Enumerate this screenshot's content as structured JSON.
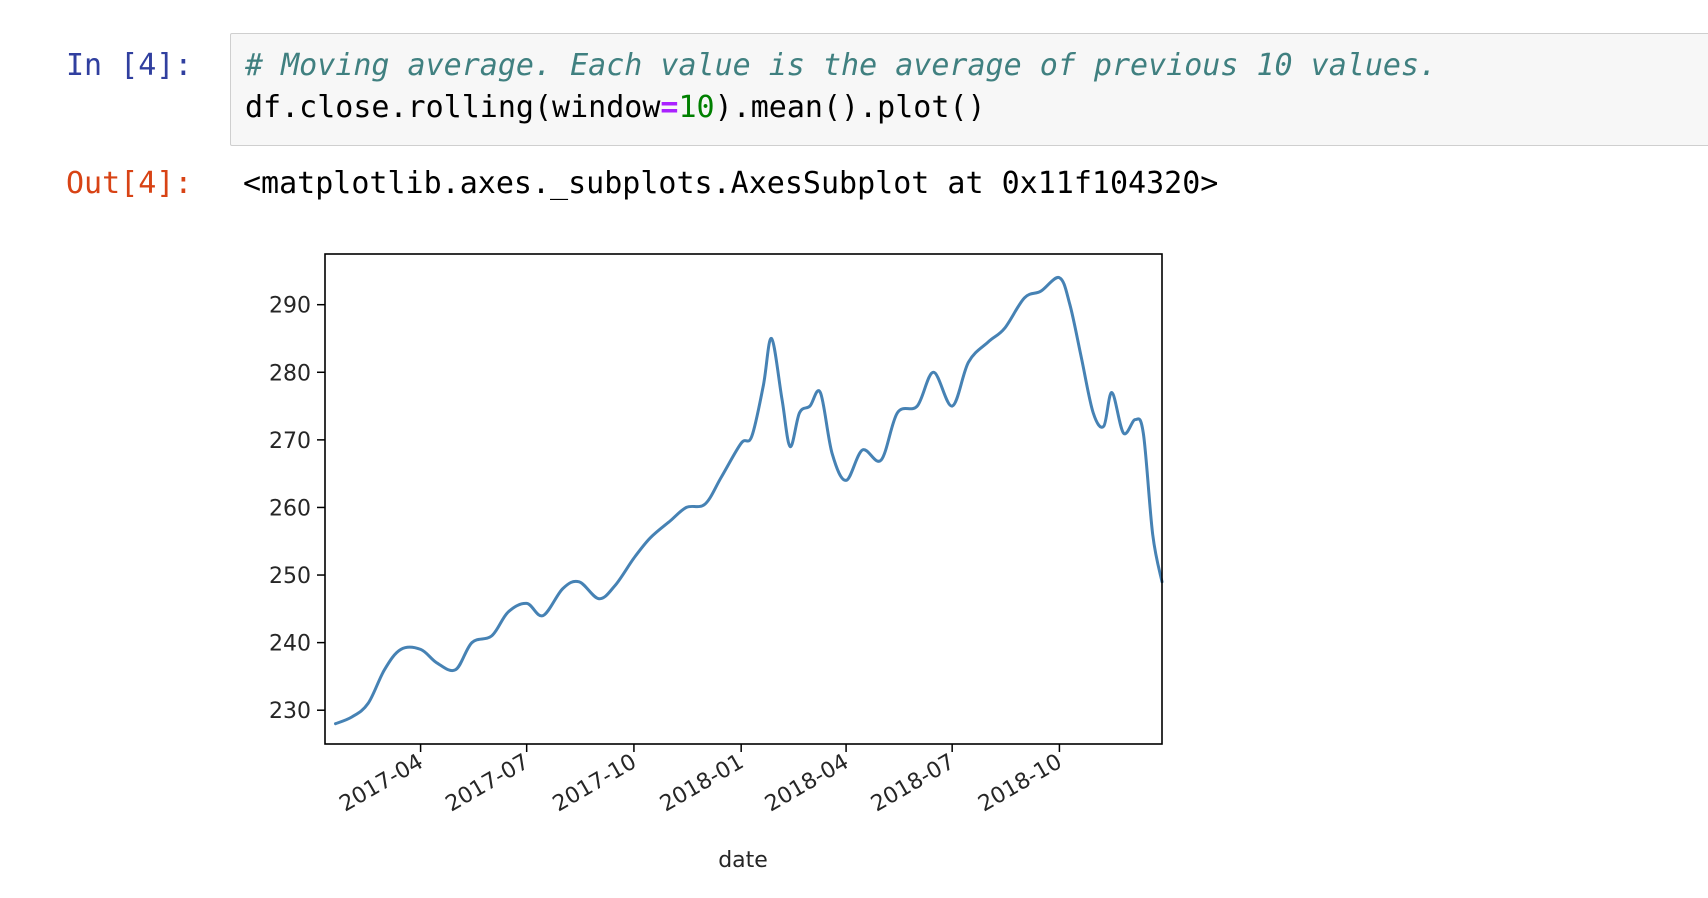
{
  "cell": {
    "in_prompt": "In [4]:",
    "out_prompt": "Out[4]:",
    "code_comment": "# Moving average. Each value is the average of previous 10 values.",
    "code_part1": "df.close.rolling(window",
    "code_op": "=",
    "code_num": "10",
    "code_part2": ").mean().plot()",
    "output_repr": "<matplotlib.axes._subplots.AxesSubplot at 0x11f104320>"
  },
  "chart_data": {
    "type": "line",
    "xlabel": "date",
    "ylabel": "",
    "title": "",
    "line_color": "#4682b4",
    "ylim": [
      225,
      297.5
    ],
    "xlim": [
      "2017-01-09",
      "2018-12-28"
    ],
    "yticks": [
      230,
      240,
      250,
      260,
      270,
      280,
      290
    ],
    "xticks": [
      "2017-04",
      "2017-07",
      "2017-10",
      "2018-01",
      "2018-04",
      "2018-07",
      "2018-10"
    ],
    "x": [
      "2017-01-18",
      "2017-02-01",
      "2017-02-15",
      "2017-03-01",
      "2017-03-15",
      "2017-04-01",
      "2017-04-15",
      "2017-05-01",
      "2017-05-15",
      "2017-06-01",
      "2017-06-15",
      "2017-07-01",
      "2017-07-15",
      "2017-08-01",
      "2017-08-15",
      "2017-09-01",
      "2017-09-15",
      "2017-10-01",
      "2017-10-15",
      "2017-11-01",
      "2017-11-15",
      "2017-12-01",
      "2017-12-15",
      "2018-01-01",
      "2018-01-10",
      "2018-01-20",
      "2018-01-27",
      "2018-02-05",
      "2018-02-12",
      "2018-02-20",
      "2018-03-01",
      "2018-03-10",
      "2018-03-20",
      "2018-04-01",
      "2018-04-15",
      "2018-05-01",
      "2018-05-15",
      "2018-06-01",
      "2018-06-15",
      "2018-07-01",
      "2018-07-15",
      "2018-08-01",
      "2018-08-15",
      "2018-09-01",
      "2018-09-15",
      "2018-10-01",
      "2018-10-10",
      "2018-10-20",
      "2018-10-30",
      "2018-11-08",
      "2018-11-15",
      "2018-11-25",
      "2018-12-05",
      "2018-12-12",
      "2018-12-20",
      "2018-12-28"
    ],
    "y": [
      228.0,
      229.0,
      231.0,
      236.0,
      239.0,
      239.0,
      237.0,
      236.0,
      240.0,
      241.0,
      244.5,
      245.8,
      244.0,
      248.0,
      249.0,
      246.5,
      248.5,
      252.5,
      255.5,
      258.0,
      260.0,
      260.5,
      264.5,
      269.5,
      270.5,
      278.0,
      285.0,
      276.0,
      269.0,
      274.0,
      275.0,
      277.0,
      268.0,
      264.0,
      268.5,
      267.0,
      274.0,
      275.0,
      280.0,
      275.0,
      281.5,
      284.5,
      286.5,
      291.0,
      292.0,
      294.0,
      290.0,
      282.0,
      274.0,
      272.0,
      277.0,
      271.0,
      273.0,
      271.0,
      256.0,
      249.0
    ]
  }
}
